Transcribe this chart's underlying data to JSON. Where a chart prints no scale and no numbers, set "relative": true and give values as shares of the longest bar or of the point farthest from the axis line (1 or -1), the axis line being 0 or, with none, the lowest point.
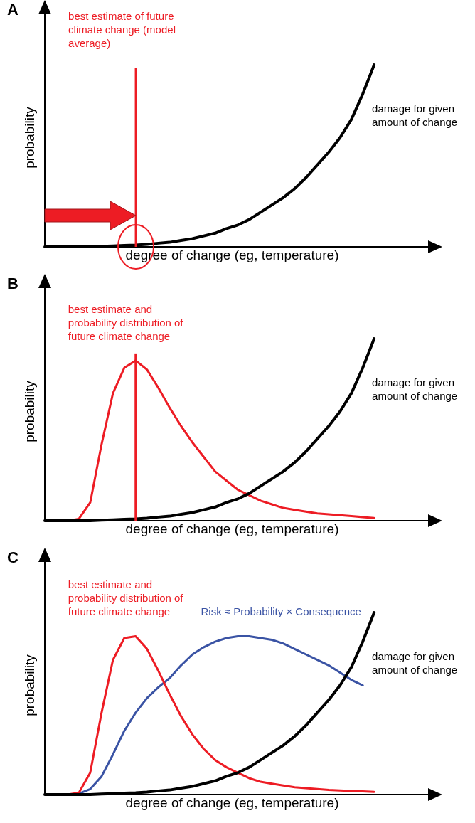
{
  "chart_data": [
    {
      "type": "line",
      "title": "A",
      "xlabel": "degree of change (eg, temperature)",
      "ylabel": "probability",
      "relative": true,
      "tick_labels": false,
      "annotations": [
        "best estimate of future climate change (model average)"
      ],
      "categories": [
        null,
        null,
        null,
        null,
        null,
        null,
        null,
        null,
        null,
        null,
        null,
        null,
        null,
        null,
        null,
        null,
        null,
        null,
        null,
        null,
        null,
        null,
        null,
        null,
        null,
        null,
        null,
        null,
        null,
        null,
        null,
        null,
        null,
        null
      ],
      "series": [
        {
          "name": "damage for given amount of change",
          "color": "#000000",
          "values": [
            0,
            0,
            0,
            0,
            0,
            0.003,
            0.005,
            0.008,
            0.01,
            0.014,
            0.02,
            0.025,
            0.035,
            0.045,
            0.06,
            0.075,
            0.1,
            0.12,
            0.15,
            0.19,
            0.23,
            0.27,
            0.32,
            0.38,
            0.45,
            0.52,
            0.6,
            0.7,
            0.84,
            1,
            null,
            null,
            null,
            null
          ]
        }
      ]
    },
    {
      "type": "line",
      "title": "B",
      "xlabel": "degree of change (eg, temperature)",
      "ylabel": "probability",
      "relative": true,
      "tick_labels": false,
      "categories": [
        null,
        null,
        null,
        null,
        null,
        null,
        null,
        null,
        null,
        null,
        null,
        null,
        null,
        null,
        null,
        null,
        null,
        null,
        null,
        null,
        null,
        null,
        null,
        null,
        null,
        null,
        null,
        null,
        null,
        null,
        null,
        null,
        null,
        null
      ],
      "series": [
        {
          "name": "damage for given amount of change",
          "color": "#000000",
          "values": [
            0,
            0,
            0,
            0,
            0,
            0.003,
            0.005,
            0.008,
            0.01,
            0.014,
            0.02,
            0.025,
            0.035,
            0.045,
            0.06,
            0.075,
            0.1,
            0.12,
            0.15,
            0.19,
            0.23,
            0.27,
            0.32,
            0.38,
            0.45,
            0.52,
            0.6,
            0.7,
            0.84,
            1,
            null,
            null,
            null,
            null
          ]
        },
        {
          "name": "best estimate and probability distribution of future climate change",
          "color": "#ed1c24",
          "values": [
            null,
            null,
            0,
            0.01,
            0.1,
            0.42,
            0.7,
            0.84,
            0.88,
            0.83,
            0.73,
            0.62,
            0.52,
            0.43,
            0.35,
            0.27,
            0.22,
            0.17,
            0.14,
            0.11,
            0.09,
            0.07,
            0.06,
            0.05,
            0.04,
            0.035,
            0.03,
            0.025,
            0.02,
            0.015,
            null,
            null,
            null,
            null
          ]
        }
      ]
    },
    {
      "type": "line",
      "title": "C",
      "xlabel": "degree of change (eg, temperature)",
      "ylabel": "probability",
      "relative": true,
      "tick_labels": false,
      "categories": [
        null,
        null,
        null,
        null,
        null,
        null,
        null,
        null,
        null,
        null,
        null,
        null,
        null,
        null,
        null,
        null,
        null,
        null,
        null,
        null,
        null,
        null,
        null,
        null,
        null,
        null,
        null,
        null,
        null,
        null,
        null,
        null,
        null,
        null
      ],
      "series": [
        {
          "name": "damage for given amount of change",
          "color": "#000000",
          "values": [
            0,
            0,
            0,
            0,
            0,
            0.003,
            0.005,
            0.008,
            0.01,
            0.014,
            0.02,
            0.025,
            0.035,
            0.045,
            0.06,
            0.075,
            0.1,
            0.12,
            0.15,
            0.19,
            0.23,
            0.27,
            0.32,
            0.38,
            0.45,
            0.52,
            0.6,
            0.7,
            0.84,
            1,
            null,
            null,
            null,
            null
          ]
        },
        {
          "name": "best estimate and probability distribution of future climate change",
          "color": "#ed1c24",
          "values": [
            null,
            null,
            0,
            0.01,
            0.12,
            0.45,
            0.74,
            0.86,
            0.87,
            0.8,
            0.68,
            0.55,
            0.43,
            0.33,
            0.25,
            0.19,
            0.15,
            0.12,
            0.09,
            0.07,
            0.06,
            0.05,
            0.04,
            0.035,
            0.03,
            0.025,
            0.022,
            0.02,
            0.018,
            0.015,
            null,
            null,
            null,
            null
          ]
        },
        {
          "name": "Risk ≈ Probability × Consequence",
          "color": "#3a53a4",
          "values": [
            null,
            0,
            0,
            0.005,
            0.03,
            0.1,
            0.22,
            0.35,
            0.45,
            0.53,
            0.59,
            0.64,
            0.71,
            0.77,
            0.81,
            0.84,
            0.86,
            0.87,
            0.87,
            0.86,
            0.85,
            0.83,
            0.8,
            0.77,
            0.74,
            0.71,
            0.67,
            0.63,
            0.6,
            null,
            null,
            null,
            null,
            null
          ]
        }
      ]
    }
  ]
}
